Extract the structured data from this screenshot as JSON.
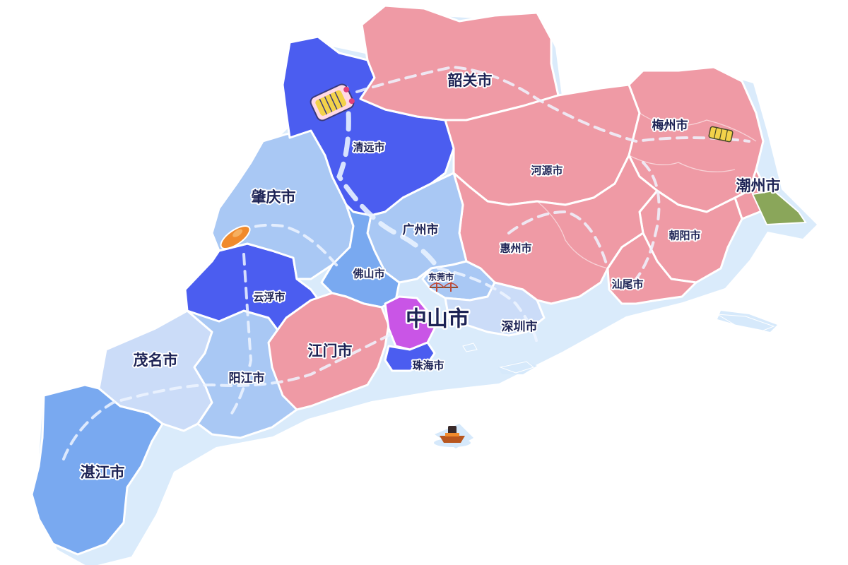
{
  "colors": {
    "ocean_shadow": "#d6e9fb",
    "east_pink": "#ef9aa5",
    "north_dark_blue": "#4b5df0",
    "mid_blue": "#79a9f0",
    "light_blue": "#a9c8f4",
    "pale_blue": "#cbdcf8",
    "zhongshan_purple": "#c955e6",
    "chaozhou_green": "#8aa65a",
    "label_color": "#1d2355"
  },
  "cities": [
    {
      "id": "shaoguan",
      "name": "韶关市"
    },
    {
      "id": "qingyuan",
      "name": "清远市"
    },
    {
      "id": "meizhou",
      "name": "梅州市"
    },
    {
      "id": "heyuan",
      "name": "河源市"
    },
    {
      "id": "chaozhou",
      "name": "潮州市"
    },
    {
      "id": "zhaoqing",
      "name": "肇庆市"
    },
    {
      "id": "guangzhou",
      "name": "广州市"
    },
    {
      "id": "chaoyang",
      "name": "朝阳市"
    },
    {
      "id": "huizhou",
      "name": "惠州市"
    },
    {
      "id": "foshan",
      "name": "佛山市"
    },
    {
      "id": "dongguan",
      "name": "东莞市"
    },
    {
      "id": "shanwei",
      "name": "汕尾市"
    },
    {
      "id": "yunfu",
      "name": "云浮市"
    },
    {
      "id": "zhongshan",
      "name": "中山市"
    },
    {
      "id": "shenzhen",
      "name": "深圳市"
    },
    {
      "id": "jiangmen",
      "name": "江门市"
    },
    {
      "id": "maoming",
      "name": "茂名市"
    },
    {
      "id": "zhuhai",
      "name": "珠海市"
    },
    {
      "id": "yangjiang",
      "name": "阳江市"
    },
    {
      "id": "zhanjiang",
      "name": "湛江市"
    }
  ],
  "icons": [
    "train-icon",
    "rail-car-icon",
    "landmark-rock-icon",
    "bridge-icon",
    "boat-icon"
  ]
}
